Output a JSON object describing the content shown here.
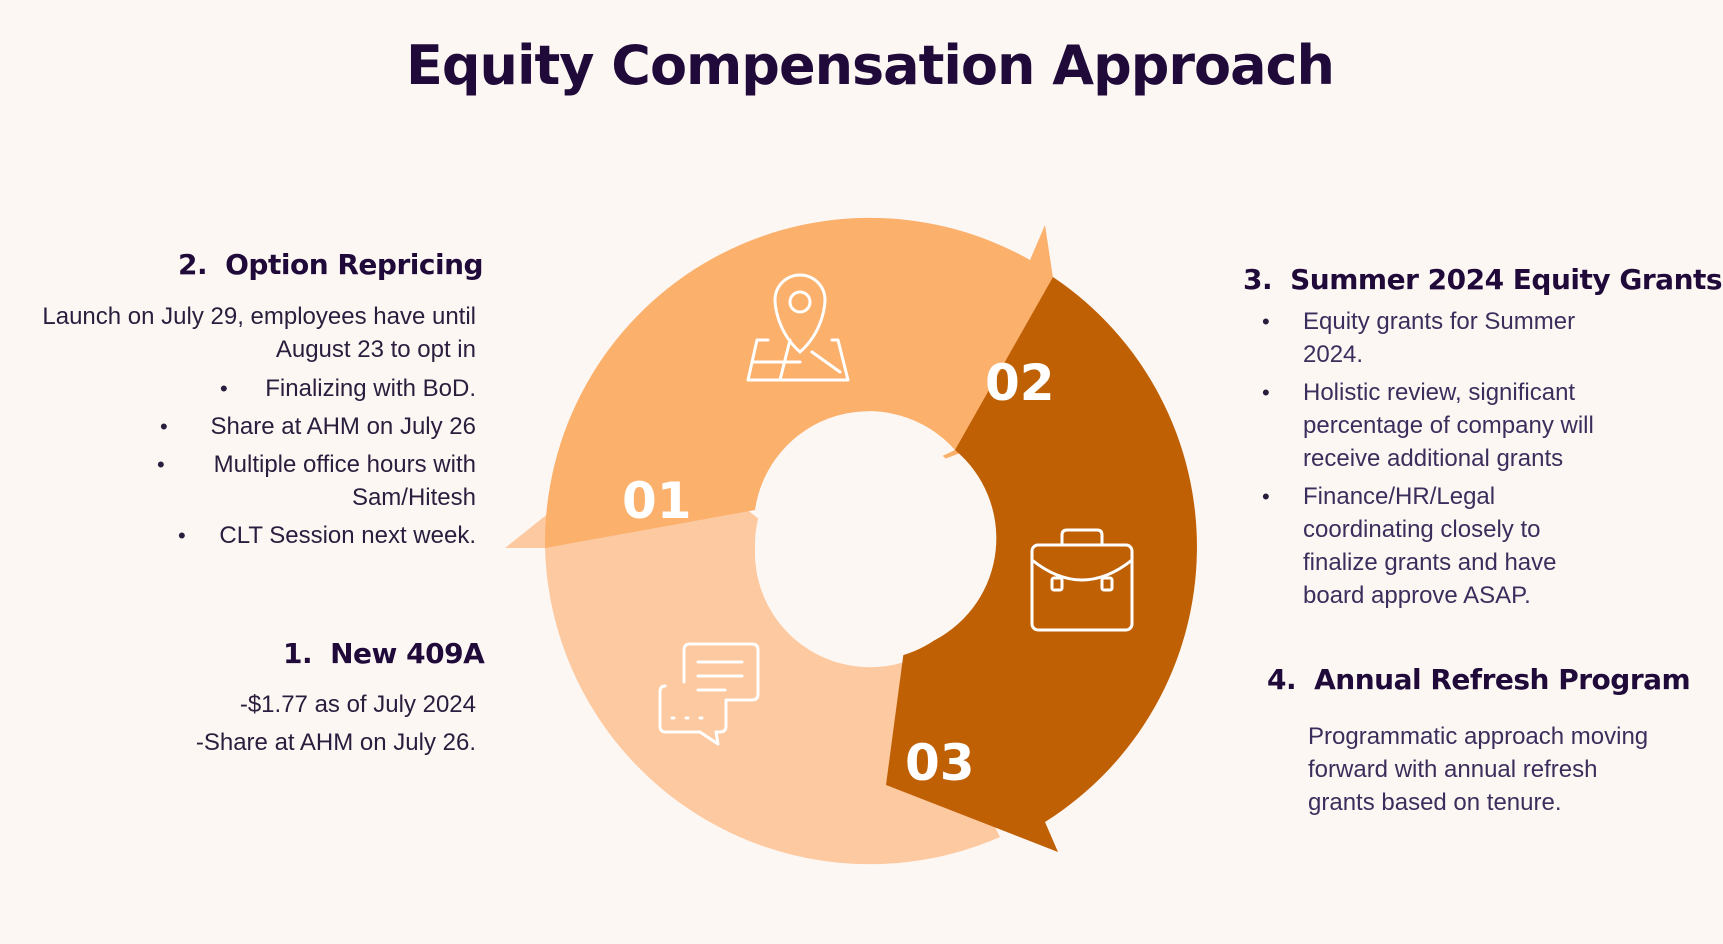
{
  "title": "Equity Compensation Approach",
  "colors": {
    "segment_01": "#fdc9a0",
    "segment_02": "#fbb06c",
    "segment_03": "#c06005",
    "heading": "#1f0a3a",
    "background": "#fdf7f3"
  },
  "cycle": {
    "labels": [
      "01",
      "02",
      "03"
    ],
    "icons": [
      "map-pin-icon",
      "briefcase-icon",
      "chat-bubbles-icon"
    ]
  },
  "sections": {
    "option_repricing": {
      "number": "2.",
      "heading": "Option Repricing",
      "intro_line1": "Launch on July 29, employees have until",
      "intro_line2": "August 23 to opt in",
      "bullets": [
        "Finalizing with BoD.",
        "Share at AHM on July 26",
        "Multiple office hours with",
        "Sam/Hitesh",
        "CLT Session next week."
      ]
    },
    "new_409a": {
      "number": "1.",
      "heading": "New 409A",
      "line1": "-$1.77 as of July 2024",
      "line2": "-Share at AHM on July 26."
    },
    "summer_grants": {
      "number": "3.",
      "heading": "Summer 2024 Equity Grants",
      "bullets": [
        [
          "Equity grants for Summer",
          "2024."
        ],
        [
          "Holistic review, significant",
          "percentage of company will",
          "receive additional grants"
        ],
        [
          "Finance/HR/Legal",
          "coordinating closely to",
          "finalize grants and have",
          "board approve ASAP."
        ]
      ]
    },
    "annual_refresh": {
      "number": "4.",
      "heading": "Annual Refresh Program",
      "lines": [
        "Programmatic approach moving",
        "forward with annual refresh",
        "grants based on tenure."
      ]
    }
  }
}
